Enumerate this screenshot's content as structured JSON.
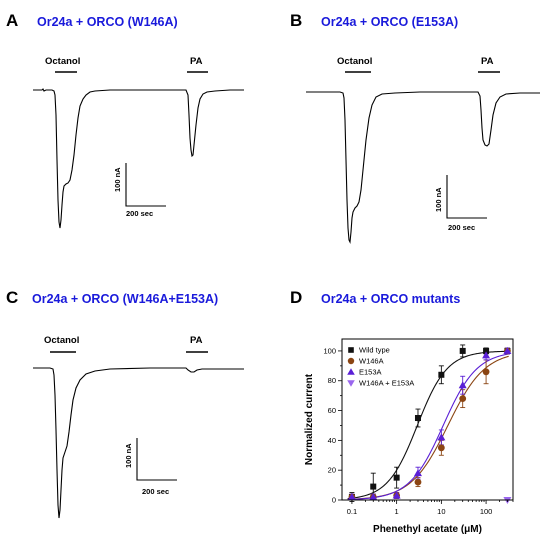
{
  "colors": {
    "title": "#1a1adb",
    "wild_type": "#111111",
    "w146a": "#8b4513",
    "e153a": "#5a1fd6",
    "w146a_e153a": "#9a66ee"
  },
  "panels": [
    {
      "letter": "A",
      "title": "Or24a + ORCO (W146A)",
      "stim1": "Octanol",
      "stim2": "PA",
      "scale_y": "100 nA",
      "scale_x": "200 sec"
    },
    {
      "letter": "B",
      "title": "Or24a + ORCO (E153A)",
      "stim1": "Octanol",
      "stim2": "PA",
      "scale_y": "100 nA",
      "scale_x": "200 sec"
    },
    {
      "letter": "C",
      "title": "Or24a + ORCO (W146A+E153A)",
      "stim1": "Octanol",
      "stim2": "PA",
      "scale_y": "100 nA",
      "scale_x": "200 sec"
    },
    {
      "letter": "D",
      "title": "Or24a + ORCO mutants"
    }
  ],
  "chart_data": {
    "type": "scatter",
    "title": "Or24a + ORCO mutants",
    "xlabel": "Phenethyl acetate (μM)",
    "ylabel": "Normalized current",
    "xscale": "log",
    "xlim": [
      0.06,
      400
    ],
    "ylim": [
      0,
      108
    ],
    "x_ticks": [
      0.1,
      1,
      10,
      100
    ],
    "x_tick_labels": [
      "0.1",
      "1",
      "10",
      "100"
    ],
    "y_ticks": [
      0,
      20,
      40,
      60,
      80,
      100
    ],
    "y_tick_labels": [
      "0",
      "20",
      "40",
      "60",
      "80",
      "100"
    ],
    "legend_position": "top-left",
    "series": [
      {
        "name": "Wild type",
        "marker": "square",
        "color": "#111111",
        "x": [
          0.1,
          0.3,
          1,
          3,
          10,
          30,
          100,
          300
        ],
        "y": [
          2,
          9,
          15,
          55,
          84,
          100,
          100,
          100
        ],
        "err": [
          3,
          9,
          7,
          6,
          6,
          4,
          2,
          2
        ],
        "fit_ec50": 2.9,
        "fit_hill": 1.3
      },
      {
        "name": "W146A",
        "marker": "circle",
        "color": "#8b4513",
        "x": [
          0.1,
          0.3,
          1,
          3,
          10,
          30,
          100,
          300
        ],
        "y": [
          2,
          2,
          3,
          12,
          35,
          68,
          86,
          100
        ],
        "err": [
          2,
          2,
          2,
          3,
          5,
          6,
          8,
          2
        ],
        "fit_ec50": 14,
        "fit_hill": 1.05
      },
      {
        "name": "E153A",
        "marker": "triangle-up",
        "color": "#5a1fd6",
        "x": [
          0.1,
          0.3,
          1,
          3,
          10,
          30,
          100,
          300
        ],
        "y": [
          2,
          2,
          3,
          18,
          42,
          77,
          97,
          100
        ],
        "err": [
          2,
          2,
          2,
          4,
          5,
          6,
          3,
          2
        ],
        "fit_ec50": 11,
        "fit_hill": 1.15
      },
      {
        "name": "W146A + E153A",
        "marker": "triangle-down",
        "color": "#9a66ee",
        "x": [
          300
        ],
        "y": [
          0
        ],
        "err": [
          0
        ]
      }
    ]
  }
}
